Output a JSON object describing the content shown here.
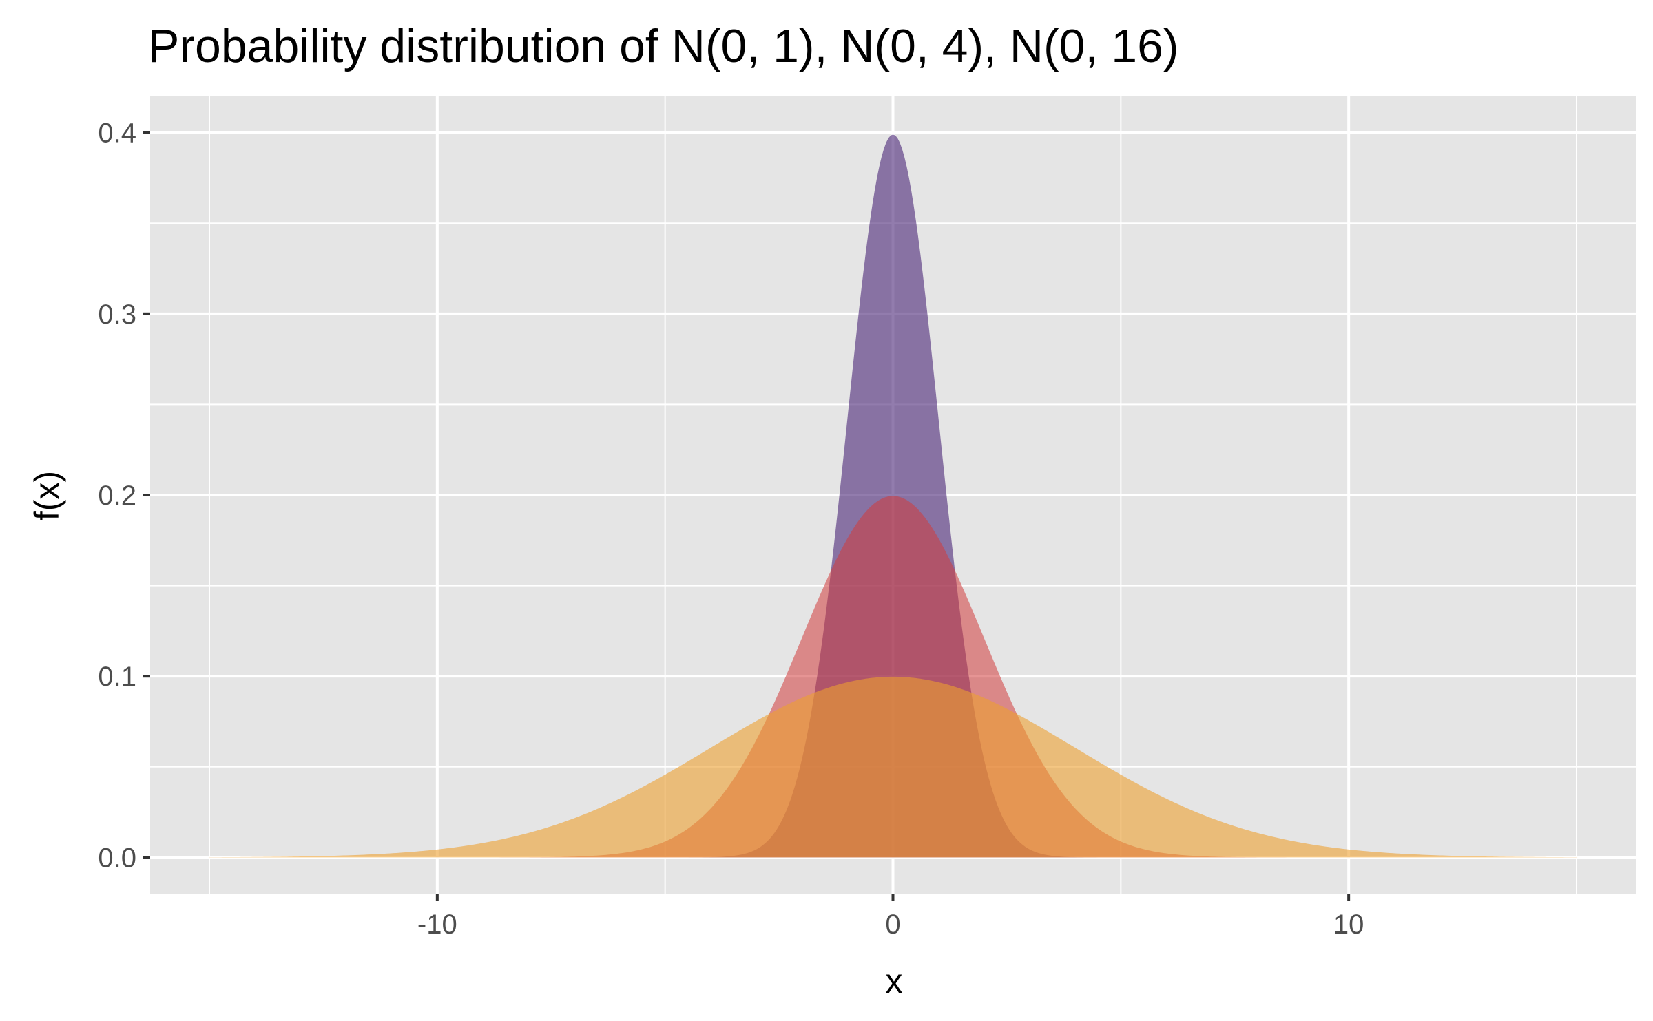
{
  "chart_data": {
    "type": "area",
    "title": "Probability distribution of N(0, 1), N(0, 4), N(0, 16)",
    "xlabel": "x",
    "ylabel": "f(x)",
    "xlim": [
      -16.3,
      16.3
    ],
    "ylim": [
      -0.02,
      0.42
    ],
    "x_ticks": [
      -10,
      0,
      10
    ],
    "x_tick_labels": [
      "-10",
      "0",
      "10"
    ],
    "y_ticks": [
      0.0,
      0.1,
      0.2,
      0.3,
      0.4
    ],
    "y_tick_labels": [
      "0.0",
      "0.1",
      "0.2",
      "0.3",
      "0.4"
    ],
    "x_minor_gridlines": [
      -15,
      -5,
      5,
      15
    ],
    "y_minor_gridlines": [
      0.05,
      0.15,
      0.25,
      0.35
    ],
    "x_range": [
      -15,
      15
    ],
    "panel_background": "#e5e5e5",
    "grid_color": "#ffffff",
    "grid": true,
    "series": [
      {
        "mean": 0,
        "variance": 16,
        "sd": 4,
        "peak": 0.0997,
        "color": "#eca030",
        "opacity": 0.6
      },
      {
        "mean": 0,
        "variance": 4,
        "sd": 2,
        "peak": 0.1995,
        "color": "#d23c3c",
        "opacity": 0.55
      },
      {
        "mean": 0,
        "variance": 1,
        "sd": 1,
        "peak": 0.3989,
        "color": "#4a2577",
        "opacity": 0.6
      }
    ],
    "draw_order": [
      2,
      1,
      0
    ]
  }
}
